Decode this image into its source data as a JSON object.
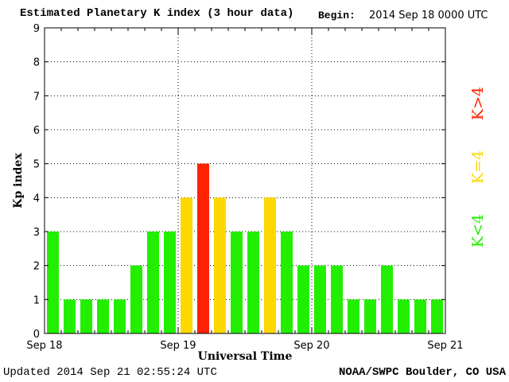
{
  "header": {
    "title": "Estimated Planetary K index (3 hour data)",
    "begin_label": "Begin:",
    "begin_value": "2014 Sep 18 0000 UTC"
  },
  "footer": {
    "updated": "Updated 2014 Sep 21 02:55:24 UTC",
    "credit": "NOAA/SWPC Boulder, CO USA"
  },
  "colors": {
    "low": "#22ee00",
    "mid": "#ffd700",
    "high": "#ff2200"
  },
  "chart_data": {
    "type": "bar",
    "title": "Estimated Planetary K index (3 hour data)",
    "xlabel": "Universal Time",
    "ylabel": "Kp index",
    "ylim": [
      0,
      9
    ],
    "yticks": [
      "0",
      "1",
      "2",
      "3",
      "4",
      "5",
      "6",
      "7",
      "8",
      "9"
    ],
    "xtick_labels": [
      "Sep 18",
      "Sep 19",
      "Sep 20",
      "Sep 21"
    ],
    "grid": true,
    "bars_per_day": 8,
    "values": [
      3,
      1,
      1,
      1,
      1,
      2,
      3,
      3,
      4,
      5,
      4,
      3,
      3,
      4,
      3,
      2,
      2,
      2,
      1,
      1,
      2,
      1,
      1,
      1
    ],
    "legend": [
      {
        "label": "K<4",
        "color_key": "low"
      },
      {
        "label": "K=4",
        "color_key": "mid"
      },
      {
        "label": "K>4",
        "color_key": "high"
      }
    ]
  }
}
